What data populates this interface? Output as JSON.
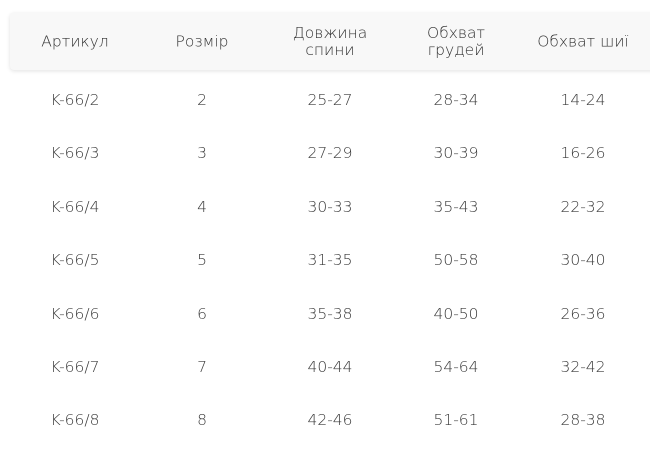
{
  "table": {
    "headers": [
      "Артикул",
      "Розмір",
      "Довжина спини",
      "Обхват грудей",
      "Обхват шиї"
    ],
    "header_lines": [
      [
        "Артикул"
      ],
      [
        "Розмір"
      ],
      [
        "Довжина",
        "спини"
      ],
      [
        "Обхват",
        "грудей"
      ],
      [
        "Обхват шиї"
      ]
    ],
    "rows": [
      [
        "K-66/2",
        "2",
        "25-27",
        "28-34",
        "14-24"
      ],
      [
        "K-66/3",
        "3",
        "27-29",
        "30-39",
        "16-26"
      ],
      [
        "K-66/4",
        "4",
        "30-33",
        "35-43",
        "22-32"
      ],
      [
        "K-66/5",
        "5",
        "31-35",
        "50-58",
        "30-40"
      ],
      [
        "K-66/6",
        "6",
        "35-38",
        "40-50",
        "26-36"
      ],
      [
        "K-66/7",
        "7",
        "40-44",
        "54-64",
        "32-42"
      ],
      [
        "K-66/8",
        "8",
        "42-46",
        "51-61",
        "28-38"
      ]
    ]
  }
}
